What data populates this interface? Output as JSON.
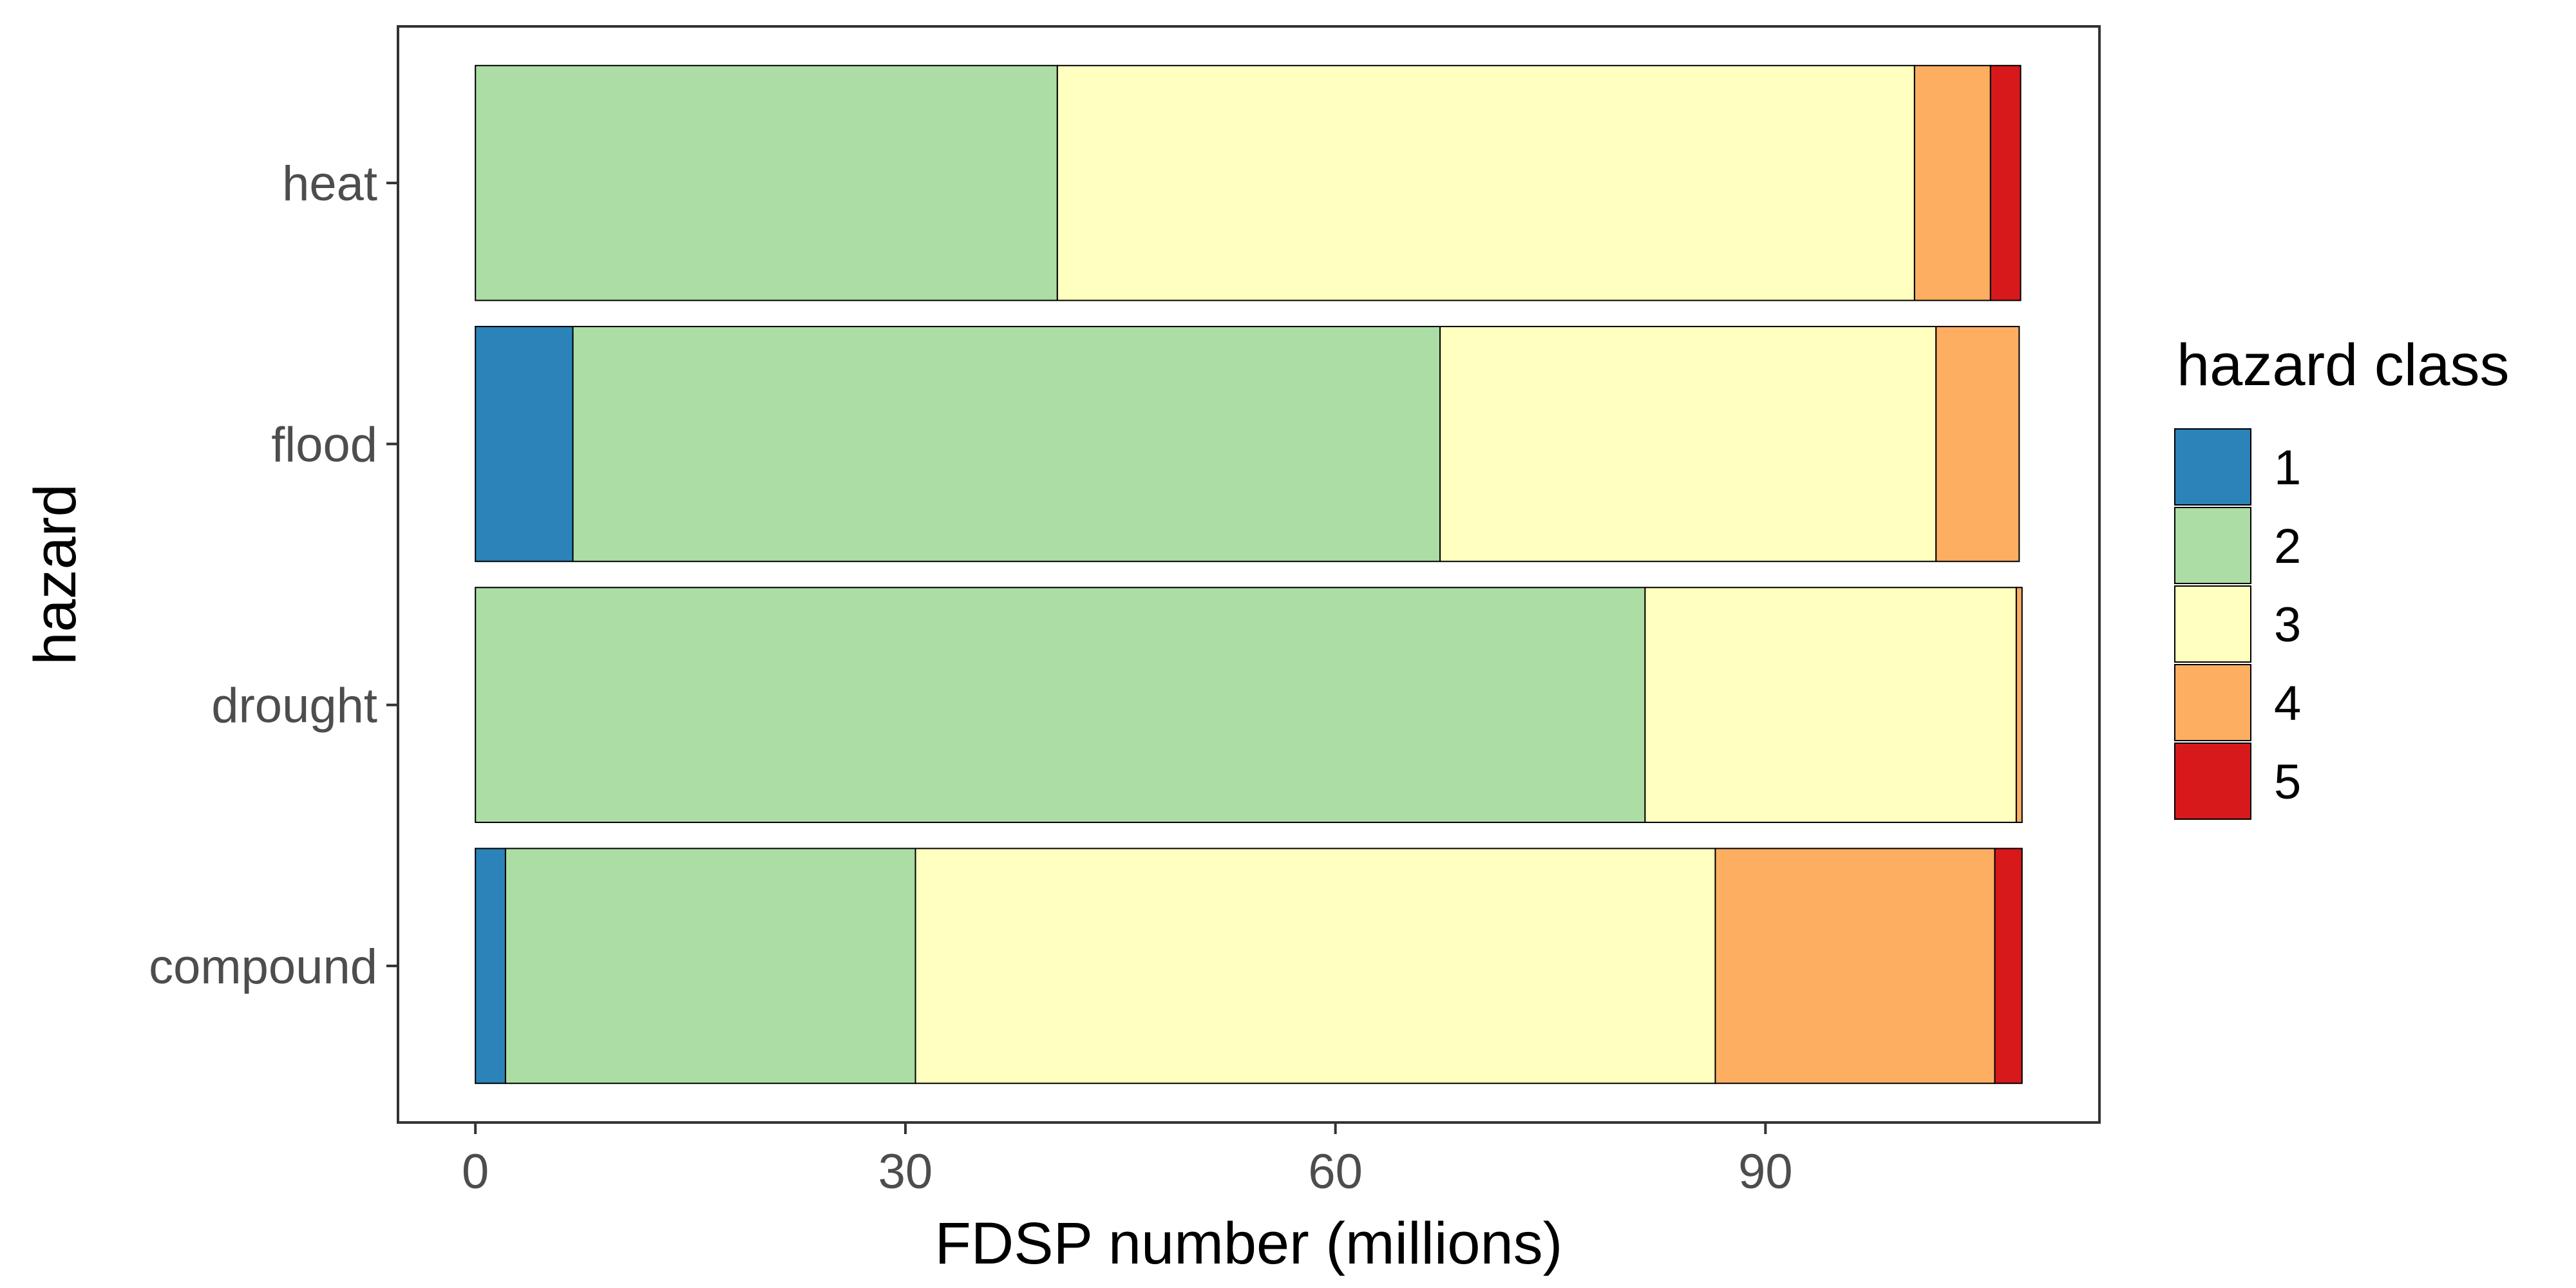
{
  "chart_data": {
    "type": "bar",
    "orientation": "horizontal",
    "stacked": true,
    "categories": [
      "heat",
      "flood",
      "drought",
      "compound"
    ],
    "series": [
      {
        "name": "1",
        "color": "#2b83ba",
        "values": [
          0,
          6.8,
          0,
          2.1
        ]
      },
      {
        "name": "2",
        "color": "#abdda4",
        "values": [
          40.6,
          60.5,
          81.6,
          28.6
        ]
      },
      {
        "name": "3",
        "color": "#ffffbf",
        "values": [
          59.8,
          34.6,
          25.9,
          55.8
        ]
      },
      {
        "name": "4",
        "color": "#fdae61",
        "values": [
          5.3,
          5.8,
          0.4,
          19.5
        ]
      },
      {
        "name": "5",
        "color": "#d7191c",
        "values": [
          2.1,
          0,
          0,
          1.9
        ]
      }
    ],
    "xlabel": "FDSP number (millions)",
    "ylabel": "hazard",
    "xticks": [
      0,
      30,
      60,
      90
    ],
    "xlim": [
      -5.4,
      113.3
    ],
    "grid": false,
    "legend": {
      "title": "hazard class",
      "position": "right"
    }
  }
}
